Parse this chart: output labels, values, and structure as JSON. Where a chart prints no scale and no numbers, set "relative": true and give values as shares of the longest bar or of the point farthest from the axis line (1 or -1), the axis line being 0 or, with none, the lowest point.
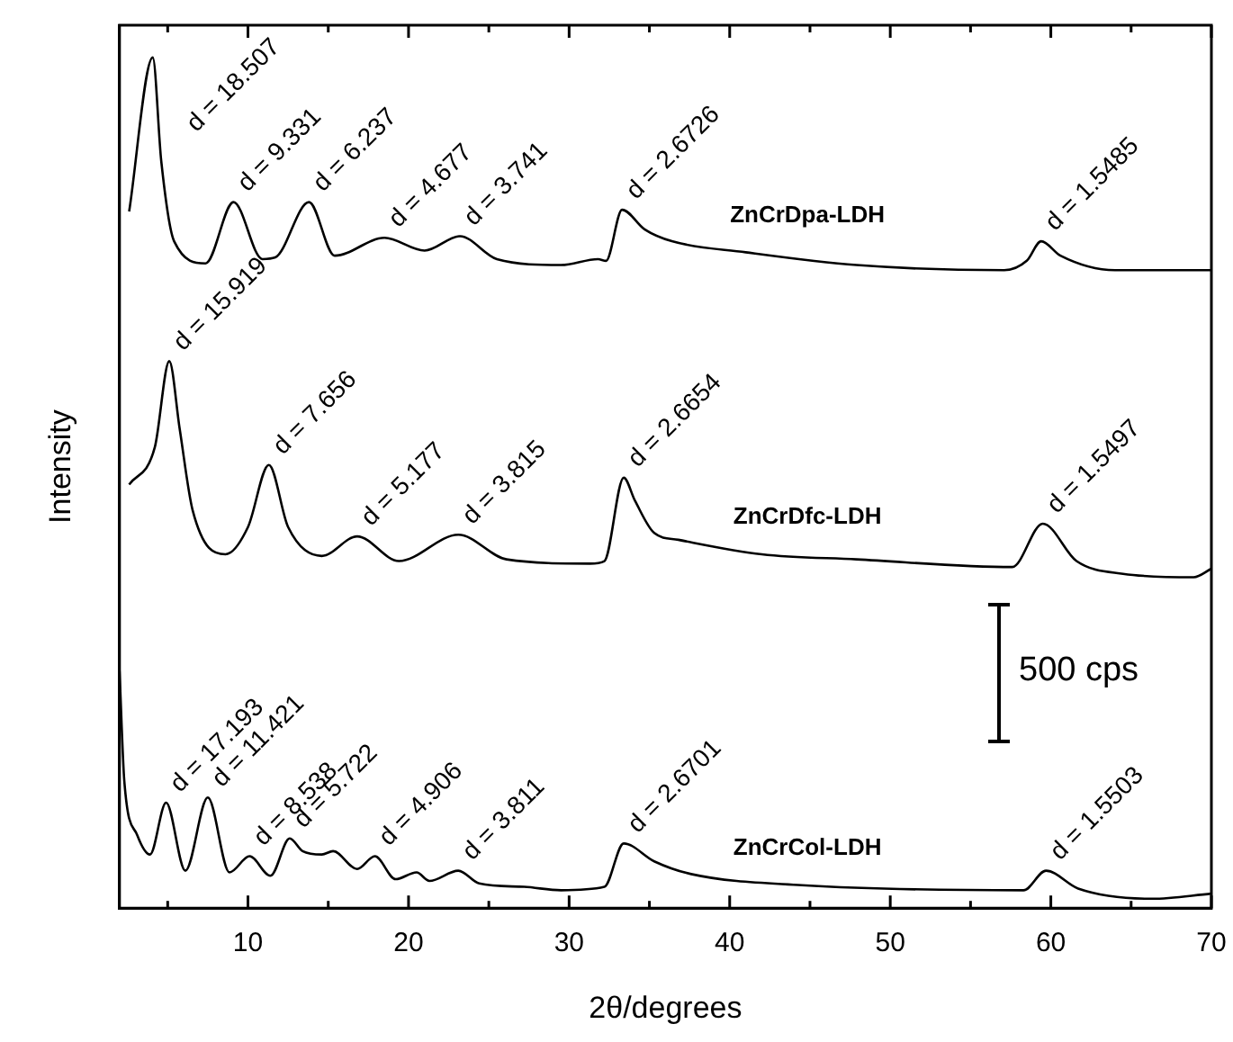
{
  "chart_data": {
    "type": "line",
    "xlabel": "2θ/degrees",
    "ylabel": "Intensity",
    "relative": true,
    "legend": false,
    "grid": false,
    "marker": "none",
    "line_style": "solid",
    "xlim": [
      2,
      70
    ],
    "xticks": [
      {
        "value": 5,
        "label": null
      },
      10,
      {
        "value": 15,
        "label": null
      },
      20,
      {
        "value": 25,
        "label": null
      },
      30,
      {
        "value": 35,
        "label": null
      },
      40,
      {
        "value": 45,
        "label": null
      },
      50,
      {
        "value": 55,
        "label": null
      },
      60,
      {
        "value": 65,
        "label": null
      },
      70
    ],
    "series": [
      {
        "name": "ZnCrDpa-LDH",
        "color": "#000000",
        "x": [
          2.6,
          4.07,
          4.6,
          5.4,
          7.36,
          9.1,
          10.9,
          11.7,
          13.8,
          15.4,
          18.5,
          21.0,
          23.2,
          25.5,
          29.5,
          31.8,
          32.3,
          33.3,
          34.7,
          36.4,
          41.0,
          47.9,
          57.1,
          58.5,
          59.4,
          60.6,
          64.0,
          70.0
        ],
        "values": [
          0.819,
          1.0,
          0.878,
          0.784,
          0.758,
          0.83,
          0.763,
          0.765,
          0.83,
          0.767,
          0.788,
          0.773,
          0.79,
          0.763,
          0.756,
          0.763,
          0.761,
          0.821,
          0.798,
          0.784,
          0.771,
          0.756,
          0.75,
          0.761,
          0.784,
          0.767,
          0.75,
          0.75
        ]
      },
      {
        "name": "ZnCrDfc-LDH",
        "color": "#000000",
        "x": [
          2.6,
          4.2,
          5.1,
          5.75,
          6.55,
          8.6,
          10.0,
          11.3,
          12.5,
          14.6,
          16.8,
          19.4,
          23.1,
          26.1,
          31.3,
          32.2,
          33.4,
          34.1,
          35.3,
          36.8,
          42.0,
          47.9,
          57.6,
          59.5,
          61.6,
          64.5,
          68.9,
          70.0
        ],
        "values": [
          0.498,
          0.542,
          0.643,
          0.563,
          0.468,
          0.416,
          0.448,
          0.521,
          0.448,
          0.414,
          0.437,
          0.408,
          0.439,
          0.41,
          0.405,
          0.408,
          0.506,
          0.479,
          0.441,
          0.433,
          0.416,
          0.41,
          0.401,
          0.452,
          0.408,
          0.393,
          0.389,
          0.399
        ]
      },
      {
        "name": "ZnCrCol-LDH",
        "color": "#000000",
        "x": [
          2.0,
          2.3,
          3.1,
          3.9,
          4.9,
          6.1,
          7.5,
          8.85,
          10.1,
          11.4,
          12.6,
          13.4,
          14.6,
          15.3,
          16.8,
          17.9,
          19.2,
          20.5,
          21.3,
          23.1,
          24.4,
          27.2,
          29.5,
          32.2,
          33.4,
          35.3,
          37.6,
          44.5,
          58.3,
          59.7,
          61.7,
          66.3,
          70.0
        ],
        "values": [
          0.279,
          0.149,
          0.086,
          0.063,
          0.124,
          0.044,
          0.13,
          0.042,
          0.061,
          0.038,
          0.082,
          0.067,
          0.063,
          0.067,
          0.046,
          0.061,
          0.034,
          0.042,
          0.032,
          0.044,
          0.029,
          0.025,
          0.021,
          0.025,
          0.076,
          0.055,
          0.04,
          0.027,
          0.021,
          0.044,
          0.023,
          0.011,
          0.017
        ]
      }
    ],
    "annotations": [
      {
        "text": "d = 18.507",
        "x": 4.07,
        "y": 1.0
      },
      {
        "text": "d = 9.331",
        "x": 9.1,
        "y": 0.83
      },
      {
        "text": "d = 6.237",
        "x": 13.8,
        "y": 0.83
      },
      {
        "text": "d = 4.677",
        "x": 18.5,
        "y": 0.788
      },
      {
        "text": "d = 3.741",
        "x": 23.2,
        "y": 0.79
      },
      {
        "text": "d = 2.6726",
        "x": 33.3,
        "y": 0.821
      },
      {
        "text": "d = 1.5485",
        "x": 59.4,
        "y": 0.784
      },
      {
        "text": "d = 15.919",
        "x": 5.1,
        "y": 0.643
      },
      {
        "text": "d = 7.656",
        "x": 11.3,
        "y": 0.521
      },
      {
        "text": "d = 5.177",
        "x": 16.8,
        "y": 0.437
      },
      {
        "text": "d = 3.815",
        "x": 23.1,
        "y": 0.439
      },
      {
        "text": "d = 2.6654",
        "x": 33.4,
        "y": 0.506
      },
      {
        "text": "d = 1.5497",
        "x": 59.5,
        "y": 0.452
      },
      {
        "text": "d = 17.193",
        "x": 4.9,
        "y": 0.124
      },
      {
        "text": "d = 11.421",
        "x": 7.5,
        "y": 0.13
      },
      {
        "text": "d = 8.538",
        "x": 10.1,
        "y": 0.061
      },
      {
        "text": "d = 5.722",
        "x": 12.6,
        "y": 0.082
      },
      {
        "text": "d = 4.906",
        "x": 17.9,
        "y": 0.061
      },
      {
        "text": "d = 3.811",
        "x": 23.1,
        "y": 0.044
      },
      {
        "text": "d = 2.6701",
        "x": 33.4,
        "y": 0.076
      },
      {
        "text": "d = 1.5503",
        "x": 59.7,
        "y": 0.044
      },
      "500 cps"
    ]
  }
}
